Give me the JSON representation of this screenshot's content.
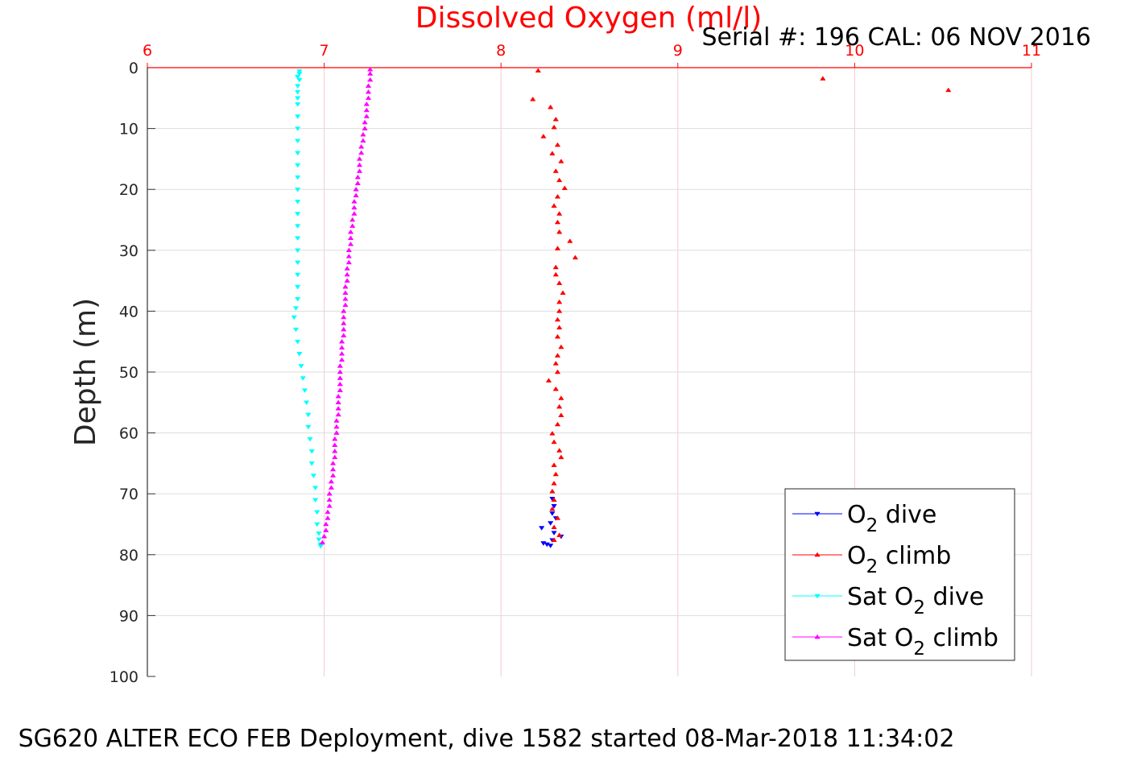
{
  "chart_data": {
    "type": "scatter",
    "title": "Dissolved Oxygen (ml/l)",
    "subtitle": "Serial #: 196  CAL: 06 NOV 2016",
    "caption": "SG620 ALTER ECO FEB Deployment, dive 1582 started 08-Mar-2018 11:34:02",
    "xlabel": "",
    "ylabel": "Depth (m)",
    "xlim": [
      6,
      11
    ],
    "ylim": [
      0,
      100
    ],
    "y_reversed": true,
    "x_axis_position": "top",
    "x_ticks": [
      "6",
      "7",
      "8",
      "9",
      "10",
      "11"
    ],
    "y_ticks": [
      "0",
      "10",
      "20",
      "30",
      "40",
      "50",
      "60",
      "70",
      "80",
      "90",
      "100"
    ],
    "grid": true,
    "legend_position": "bottom-right",
    "colors": {
      "title": "#ff0000",
      "x_ticks": "#ff0000",
      "grid_x": "#f4c9d0",
      "grid_y": "#dddddd",
      "axis": "#333333"
    },
    "series": [
      {
        "name": "O",
        "name_sub": "2",
        "name_suffix": " dive",
        "color": "#0000ff",
        "marker": "triangle-down",
        "points": [
          [
            8.29,
            70.8
          ],
          [
            8.3,
            72.0
          ],
          [
            8.29,
            73.2
          ],
          [
            8.31,
            74.0
          ],
          [
            8.28,
            74.8
          ],
          [
            8.23,
            75.6
          ],
          [
            8.3,
            76.4
          ],
          [
            8.34,
            77.0
          ],
          [
            8.29,
            77.6
          ],
          [
            8.24,
            78.1
          ],
          [
            8.26,
            78.3
          ],
          [
            8.28,
            78.5
          ]
        ]
      },
      {
        "name": "O",
        "name_sub": "2",
        "name_suffix": " climb",
        "color": "#ff0000",
        "marker": "triangle-up",
        "points": [
          [
            8.21,
            0.5
          ],
          [
            9.82,
            1.8
          ],
          [
            10.53,
            3.7
          ],
          [
            8.18,
            5.2
          ],
          [
            8.28,
            6.5
          ],
          [
            8.31,
            8.5
          ],
          [
            8.3,
            9.8
          ],
          [
            8.24,
            11.3
          ],
          [
            8.32,
            12.7
          ],
          [
            8.29,
            14.1
          ],
          [
            8.34,
            15.4
          ],
          [
            8.31,
            17.0
          ],
          [
            8.33,
            18.5
          ],
          [
            8.36,
            19.8
          ],
          [
            8.32,
            21.2
          ],
          [
            8.3,
            22.7
          ],
          [
            8.33,
            24.0
          ],
          [
            8.32,
            25.4
          ],
          [
            8.33,
            27.0
          ],
          [
            8.39,
            28.5
          ],
          [
            8.32,
            29.7
          ],
          [
            8.42,
            31.2
          ],
          [
            8.31,
            32.8
          ],
          [
            8.31,
            34.0
          ],
          [
            8.33,
            35.4
          ],
          [
            8.35,
            37.0
          ],
          [
            8.33,
            38.5
          ],
          [
            8.33,
            40.0
          ],
          [
            8.32,
            41.4
          ],
          [
            8.33,
            42.7
          ],
          [
            8.32,
            44.2
          ],
          [
            8.34,
            45.9
          ],
          [
            8.32,
            47.3
          ],
          [
            8.31,
            48.6
          ],
          [
            8.32,
            50.0
          ],
          [
            8.27,
            51.4
          ],
          [
            8.31,
            52.8
          ],
          [
            8.34,
            54.3
          ],
          [
            8.33,
            55.7
          ],
          [
            8.34,
            57.1
          ],
          [
            8.32,
            58.6
          ],
          [
            8.29,
            60.1
          ],
          [
            8.3,
            61.5
          ],
          [
            8.33,
            62.9
          ],
          [
            8.34,
            64.0
          ],
          [
            8.3,
            65.3
          ],
          [
            8.31,
            66.8
          ],
          [
            8.3,
            68.3
          ],
          [
            8.29,
            69.6
          ],
          [
            8.3,
            71.0
          ],
          [
            8.29,
            72.5
          ],
          [
            8.32,
            74.0
          ],
          [
            8.3,
            75.5
          ],
          [
            8.33,
            76.8
          ],
          [
            8.3,
            77.6
          ]
        ]
      },
      {
        "name": "Sat O",
        "name_sub": "2",
        "name_suffix": " dive",
        "color": "#00ffff",
        "marker": "triangle-down",
        "points": [
          [
            6.86,
            0.6
          ],
          [
            6.86,
            1.0
          ],
          [
            6.85,
            1.5
          ],
          [
            6.86,
            2.0
          ],
          [
            6.85,
            3.0
          ],
          [
            6.85,
            4.0
          ],
          [
            6.85,
            5.0
          ],
          [
            6.85,
            6.0
          ],
          [
            6.85,
            8.0
          ],
          [
            6.85,
            10.0
          ],
          [
            6.85,
            12.0
          ],
          [
            6.85,
            14.0
          ],
          [
            6.85,
            16.0
          ],
          [
            6.85,
            18.0
          ],
          [
            6.85,
            20.0
          ],
          [
            6.85,
            22.0
          ],
          [
            6.85,
            24.0
          ],
          [
            6.85,
            26.0
          ],
          [
            6.85,
            28.0
          ],
          [
            6.85,
            30.0
          ],
          [
            6.85,
            32.0
          ],
          [
            6.85,
            34.0
          ],
          [
            6.85,
            36.0
          ],
          [
            6.85,
            38.0
          ],
          [
            6.84,
            39.5
          ],
          [
            6.83,
            41.0
          ],
          [
            6.84,
            43.0
          ],
          [
            6.85,
            45.0
          ],
          [
            6.86,
            47.0
          ],
          [
            6.87,
            49.0
          ],
          [
            6.88,
            51.0
          ],
          [
            6.89,
            53.0
          ],
          [
            6.9,
            55.0
          ],
          [
            6.91,
            57.0
          ],
          [
            6.91,
            59.0
          ],
          [
            6.92,
            61.0
          ],
          [
            6.93,
            63.0
          ],
          [
            6.93,
            65.0
          ],
          [
            6.94,
            67.0
          ],
          [
            6.95,
            69.0
          ],
          [
            6.95,
            71.0
          ],
          [
            6.96,
            73.0
          ],
          [
            6.96,
            75.0
          ],
          [
            6.97,
            76.5
          ],
          [
            6.97,
            77.5
          ],
          [
            6.98,
            78.3
          ],
          [
            6.98,
            78.6
          ]
        ]
      },
      {
        "name": "Sat O",
        "name_sub": "2",
        "name_suffix": " climb",
        "color": "#ff00ff",
        "marker": "triangle-up",
        "points": [
          [
            7.26,
            0.3
          ],
          [
            7.26,
            1.0
          ],
          [
            7.26,
            2.0
          ],
          [
            7.25,
            3.0
          ],
          [
            7.25,
            4.0
          ],
          [
            7.25,
            5.0
          ],
          [
            7.24,
            6.0
          ],
          [
            7.24,
            7.0
          ],
          [
            7.24,
            8.0
          ],
          [
            7.23,
            9.0
          ],
          [
            7.23,
            10.0
          ],
          [
            7.22,
            11.0
          ],
          [
            7.22,
            12.0
          ],
          [
            7.21,
            13.0
          ],
          [
            7.21,
            14.0
          ],
          [
            7.2,
            15.0
          ],
          [
            7.2,
            16.0
          ],
          [
            7.2,
            17.0
          ],
          [
            7.19,
            18.0
          ],
          [
            7.19,
            19.0
          ],
          [
            7.18,
            20.0
          ],
          [
            7.18,
            21.0
          ],
          [
            7.17,
            22.0
          ],
          [
            7.17,
            23.0
          ],
          [
            7.17,
            24.0
          ],
          [
            7.16,
            25.0
          ],
          [
            7.16,
            26.0
          ],
          [
            7.15,
            27.0
          ],
          [
            7.15,
            28.0
          ],
          [
            7.15,
            29.0
          ],
          [
            7.14,
            30.0
          ],
          [
            7.14,
            31.0
          ],
          [
            7.14,
            32.0
          ],
          [
            7.13,
            33.0
          ],
          [
            7.13,
            34.0
          ],
          [
            7.13,
            35.0
          ],
          [
            7.12,
            36.0
          ],
          [
            7.12,
            37.0
          ],
          [
            7.12,
            38.0
          ],
          [
            7.12,
            39.0
          ],
          [
            7.11,
            40.0
          ],
          [
            7.11,
            41.0
          ],
          [
            7.11,
            42.0
          ],
          [
            7.11,
            43.0
          ],
          [
            7.11,
            44.0
          ],
          [
            7.1,
            45.0
          ],
          [
            7.1,
            46.0
          ],
          [
            7.1,
            47.0
          ],
          [
            7.1,
            48.0
          ],
          [
            7.09,
            49.0
          ],
          [
            7.09,
            50.0
          ],
          [
            7.09,
            51.0
          ],
          [
            7.09,
            52.0
          ],
          [
            7.09,
            53.0
          ],
          [
            7.08,
            54.0
          ],
          [
            7.08,
            55.0
          ],
          [
            7.08,
            56.0
          ],
          [
            7.08,
            57.0
          ],
          [
            7.07,
            58.0
          ],
          [
            7.07,
            59.0
          ],
          [
            7.07,
            60.0
          ],
          [
            7.06,
            61.0
          ],
          [
            7.06,
            62.0
          ],
          [
            7.06,
            63.0
          ],
          [
            7.06,
            64.0
          ],
          [
            7.05,
            65.0
          ],
          [
            7.05,
            66.0
          ],
          [
            7.05,
            67.0
          ],
          [
            7.04,
            68.0
          ],
          [
            7.04,
            69.0
          ],
          [
            7.03,
            70.0
          ],
          [
            7.03,
            71.0
          ],
          [
            7.03,
            72.0
          ],
          [
            7.02,
            73.0
          ],
          [
            7.02,
            74.0
          ],
          [
            7.01,
            75.0
          ],
          [
            7.01,
            76.0
          ],
          [
            7.0,
            77.0
          ],
          [
            6.99,
            78.0
          ]
        ]
      }
    ]
  }
}
